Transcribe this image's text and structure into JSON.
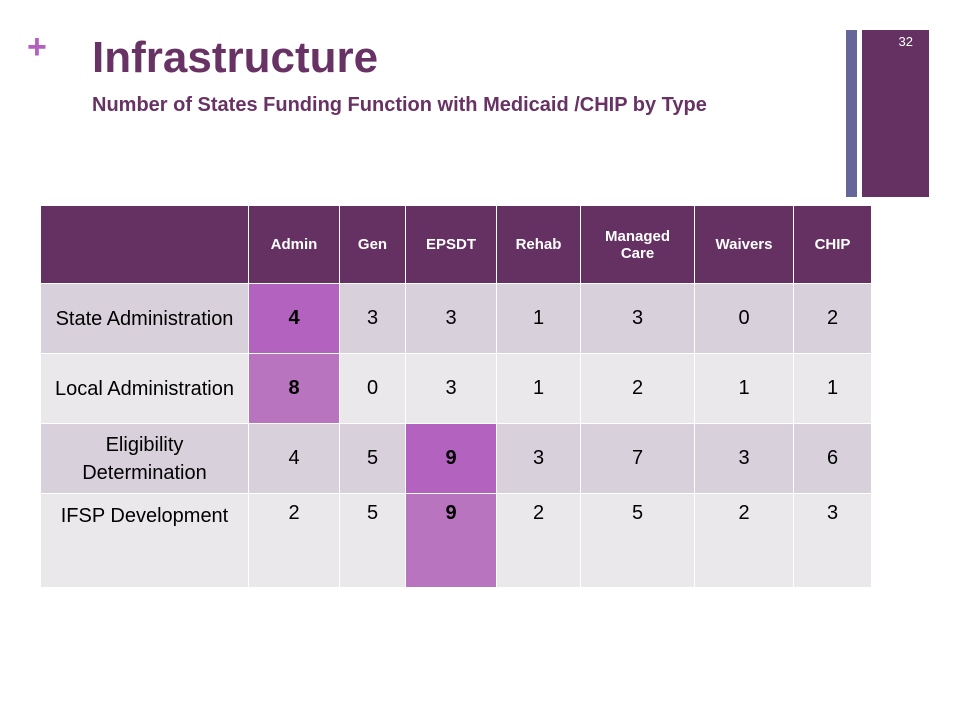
{
  "slide": {
    "plus": "+",
    "title": "Infrastructure",
    "subtitle": "Number of States Funding Function with Medicaid /CHIP by Type",
    "slide_number": "32"
  },
  "table": {
    "headers": [
      "",
      "Admin",
      "Gen",
      "EPSDT",
      "Rehab",
      "Managed Care",
      "Waivers",
      "CHIP"
    ],
    "rows": [
      {
        "label": "State Administration",
        "values": [
          "4",
          "3",
          "3",
          "1",
          "3",
          "0",
          "2"
        ],
        "highlight": 0
      },
      {
        "label": "Local Administration",
        "values": [
          "8",
          "0",
          "3",
          "1",
          "2",
          "1",
          "1"
        ],
        "highlight": 0
      },
      {
        "label": "Eligibility Determination",
        "values": [
          "4",
          "5",
          "9",
          "3",
          "7",
          "3",
          "6"
        ],
        "highlight": 2
      },
      {
        "label": "IFSP Development",
        "values": [
          "2",
          "5",
          "9",
          "2",
          "5",
          "2",
          "3"
        ],
        "highlight": 2
      }
    ]
  },
  "colors": {
    "header_bg": "#643162",
    "title": "#683364",
    "highlight": "#b462bf",
    "accent_bar": "#666699"
  }
}
